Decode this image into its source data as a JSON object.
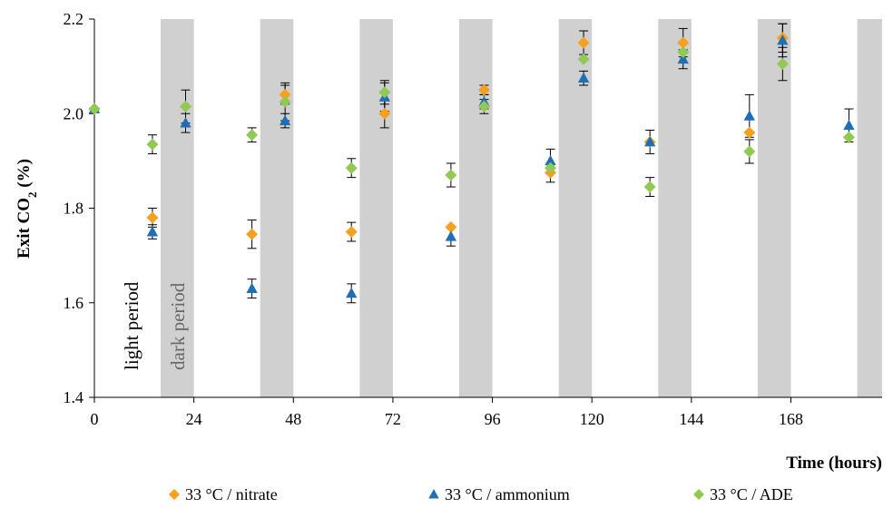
{
  "chart_data": {
    "type": "scatter",
    "xlabel": "Time (hours)",
    "ylabel_main": "Exit CO",
    "ylabel_sub": "2",
    "ylabel_suffix": " (%)",
    "xlim": [
      0,
      190
    ],
    "ylim": [
      1.4,
      2.2
    ],
    "xticks": [
      0,
      24,
      48,
      72,
      96,
      120,
      144,
      168
    ],
    "yticks": [
      1.4,
      1.6,
      1.8,
      2.0,
      2.2
    ],
    "ytick_labels": [
      "1.4",
      "1.6",
      "1.8",
      "2.0",
      "2.2"
    ],
    "annotations": {
      "light": "light period",
      "dark": "dark period"
    },
    "dark_periods": [
      [
        16,
        24
      ],
      [
        40,
        48
      ],
      [
        64,
        72
      ],
      [
        88,
        96
      ],
      [
        112,
        120
      ],
      [
        136,
        144
      ],
      [
        160,
        168
      ],
      [
        184,
        190
      ]
    ],
    "legend_position": "bottom",
    "series": [
      {
        "name": "33 °C / nitrate",
        "marker": "diamond",
        "color": "#f5a01e",
        "points": [
          {
            "x": 0,
            "y": 2.01,
            "e": 0.0
          },
          {
            "x": 14,
            "y": 1.78,
            "e": 0.02
          },
          {
            "x": 22,
            "y": 2.015,
            "e": 0.0
          },
          {
            "x": 38,
            "y": 1.745,
            "e": 0.03
          },
          {
            "x": 46,
            "y": 2.04,
            "e": 0.02
          },
          {
            "x": 62,
            "y": 1.75,
            "e": 0.02
          },
          {
            "x": 70,
            "y": 2.0,
            "e": 0.03
          },
          {
            "x": 86,
            "y": 1.76,
            "e": 0.0
          },
          {
            "x": 94,
            "y": 2.05,
            "e": 0.01
          },
          {
            "x": 110,
            "y": 1.875,
            "e": 0.02
          },
          {
            "x": 118,
            "y": 2.15,
            "e": 0.025
          },
          {
            "x": 134,
            "y": 1.94,
            "e": 0.0
          },
          {
            "x": 142,
            "y": 2.15,
            "e": 0.03
          },
          {
            "x": 158,
            "y": 1.96,
            "e": 0.0
          },
          {
            "x": 166,
            "y": 2.16,
            "e": 0.03
          },
          {
            "x": 182,
            "y": 1.95,
            "e": 0.0
          }
        ]
      },
      {
        "name": "33 °C / ammonium",
        "marker": "triangle",
        "color": "#1f6fb4",
        "points": [
          {
            "x": 0,
            "y": 2.01,
            "e": 0.0
          },
          {
            "x": 14,
            "y": 1.75,
            "e": 0.015
          },
          {
            "x": 22,
            "y": 1.98,
            "e": 0.02
          },
          {
            "x": 38,
            "y": 1.63,
            "e": 0.02
          },
          {
            "x": 46,
            "y": 1.985,
            "e": 0.015
          },
          {
            "x": 62,
            "y": 1.62,
            "e": 0.02
          },
          {
            "x": 70,
            "y": 2.035,
            "e": 0.03
          },
          {
            "x": 86,
            "y": 1.74,
            "e": 0.02
          },
          {
            "x": 94,
            "y": 2.025,
            "e": 0.015
          },
          {
            "x": 110,
            "y": 1.9,
            "e": 0.025
          },
          {
            "x": 118,
            "y": 2.075,
            "e": 0.015
          },
          {
            "x": 134,
            "y": 1.94,
            "e": 0.025
          },
          {
            "x": 142,
            "y": 2.115,
            "e": 0.02
          },
          {
            "x": 158,
            "y": 1.995,
            "e": 0.045
          },
          {
            "x": 166,
            "y": 2.155,
            "e": 0.035
          },
          {
            "x": 182,
            "y": 1.975,
            "e": 0.035
          }
        ]
      },
      {
        "name": "33 °C / ADE",
        "marker": "diamond",
        "color": "#92c854",
        "points": [
          {
            "x": 0,
            "y": 2.01,
            "e": 0.0
          },
          {
            "x": 14,
            "y": 1.935,
            "e": 0.02
          },
          {
            "x": 22,
            "y": 2.015,
            "e": 0.035
          },
          {
            "x": 38,
            "y": 1.955,
            "e": 0.015
          },
          {
            "x": 46,
            "y": 2.025,
            "e": 0.04
          },
          {
            "x": 62,
            "y": 1.885,
            "e": 0.02
          },
          {
            "x": 70,
            "y": 2.045,
            "e": 0.025
          },
          {
            "x": 86,
            "y": 1.87,
            "e": 0.025
          },
          {
            "x": 94,
            "y": 2.015,
            "e": 0.015
          },
          {
            "x": 110,
            "y": 1.885,
            "e": 0.0
          },
          {
            "x": 118,
            "y": 2.115,
            "e": 0.0
          },
          {
            "x": 134,
            "y": 1.845,
            "e": 0.02
          },
          {
            "x": 142,
            "y": 2.13,
            "e": 0.0
          },
          {
            "x": 158,
            "y": 1.92,
            "e": 0.025
          },
          {
            "x": 166,
            "y": 2.105,
            "e": 0.035
          },
          {
            "x": 182,
            "y": 1.95,
            "e": 0.0
          }
        ]
      }
    ]
  }
}
